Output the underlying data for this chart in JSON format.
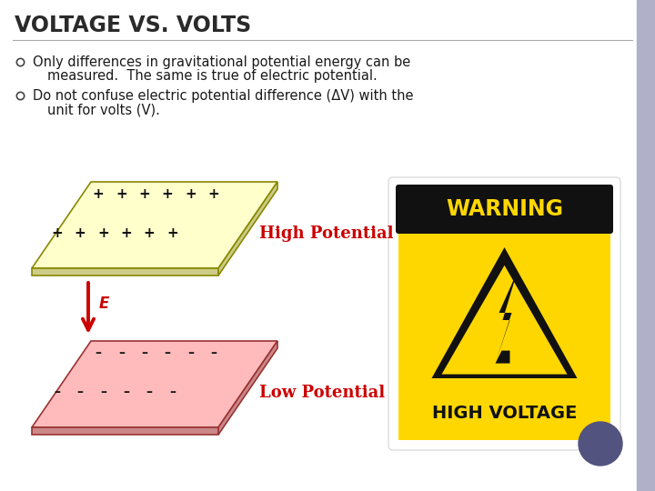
{
  "title": "VOLTAGE VS. VOLTS",
  "bullet1_line1": "Only differences in gravitational potential energy can be",
  "bullet1_line2": "measured.  The same is true of electric potential.",
  "bullet2_line1": "Do not confuse electric potential difference (ΔV) with the",
  "bullet2_line2": "unit for volts (V).",
  "high_potential_label": "High Potential",
  "low_potential_label": "Low Potential",
  "e_label": "E",
  "bg_color": "#ffffff",
  "title_color": "#2a2a2a",
  "bullet_color": "#1a1a1a",
  "high_plate_top": "#ffffcc",
  "high_plate_side": "#cccc88",
  "high_plate_edge": "#888800",
  "low_plate_top": "#ffbbbb",
  "low_plate_side": "#cc8888",
  "low_plate_edge": "#993333",
  "plus_color": "#111111",
  "minus_color": "#111111",
  "arrow_color": "#cc0000",
  "label_color": "#cc0000",
  "circle_color": "#535380",
  "slide_border_color": "#b0b0c8"
}
